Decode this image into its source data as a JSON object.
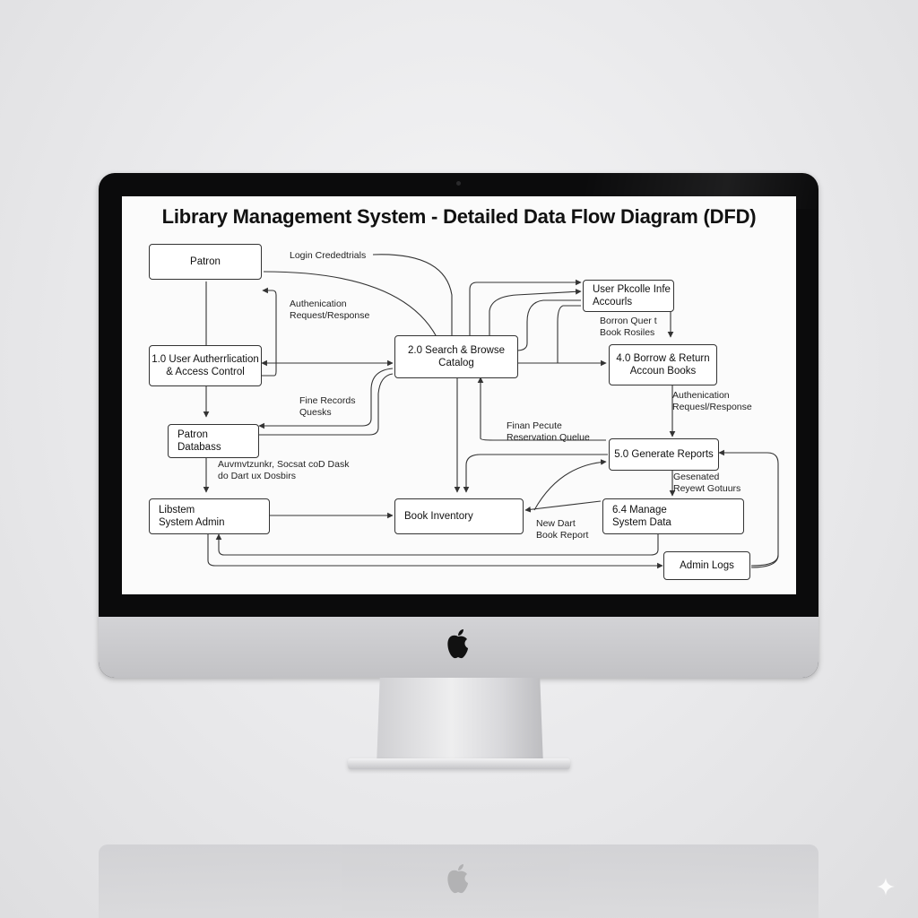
{
  "diagram": {
    "title": "Library Management System - Detailed Data Flow Diagram (DFD)",
    "nodes": {
      "patron": "Patron",
      "auth": "1.0 User Autherrlication\n& Access Control",
      "search": "2.0 Search & Browse\nCatalog",
      "profile": "User Pkcolle Infe\nAccourls",
      "borrow": "4.0 Borrow & Return\nAccoun Books",
      "patron_db": "Patron\nDatabass",
      "reports": "5.0 Generate Reports",
      "sysadmin": "Libstem\nSystem Admin",
      "inventory": "Book Inventory",
      "manage": "6.4 Manage\nSystem Data",
      "logs": "Admin Logs"
    },
    "labels": {
      "login": "Login Crededtrials",
      "auth_req": "Authenication\nRequest/Response",
      "borrow_q": "Borron Quer t\nBook Rosiles",
      "fine": "Fine Records\nQuesks",
      "auth_req2": "Authenication\nRequesl/Response",
      "finan": "Finan Pecute\nReservation Quelue",
      "auth_db": "Auvmvtzunkr, Socsat coD Dask\ndo Dart ux Dosbirs",
      "generated": "Gesenated\nReyewt Gotuurs",
      "new_dart": "New Dart\nBook Report"
    }
  },
  "icons": {
    "brand": "apple-logo-icon",
    "watermark": "sparkle-icon"
  },
  "colors": {
    "bezel": "#0b0b0c",
    "chin": "#c8c8cb",
    "line": "#333333",
    "screen": "#fbfbfb"
  }
}
